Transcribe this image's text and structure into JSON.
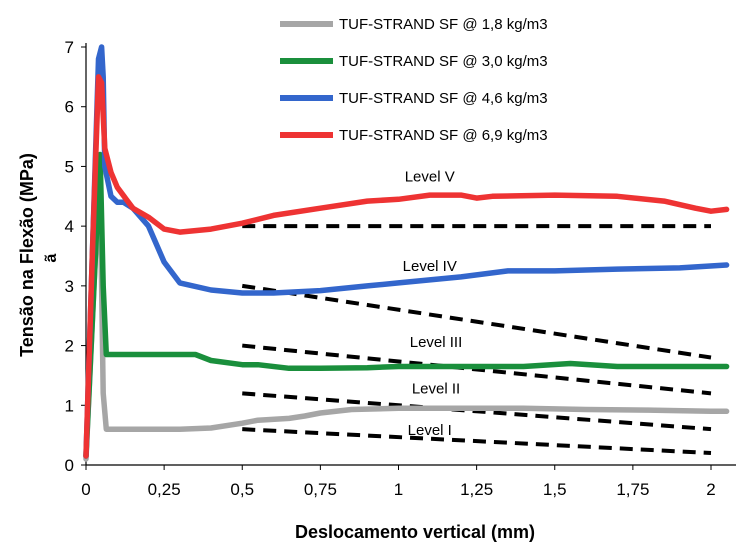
{
  "chart_data": {
    "type": "line",
    "title": "",
    "xlabel": "Deslocamento vertical (mm)",
    "ylabel": "Tensão na Flexão (MPa)",
    "ylabel_stray": "ã",
    "xlim": [
      0,
      2.08
    ],
    "ylim": [
      0,
      7
    ],
    "xticks": [
      0,
      0.25,
      0.5,
      0.75,
      1,
      1.25,
      1.5,
      1.75,
      2
    ],
    "xtick_labels": [
      "0",
      "0,25",
      "0,5",
      "0,75",
      "1",
      "1,25",
      "1,5",
      "1,75",
      "2"
    ],
    "yticks": [
      0,
      1,
      2,
      3,
      4,
      5,
      6,
      7
    ],
    "ytick_labels": [
      "0",
      "1",
      "2",
      "3",
      "4",
      "5",
      "6",
      "7"
    ],
    "grid": false,
    "legend_position": "top-center",
    "series": [
      {
        "name": "TUF-STRAND SF @ 1,8 kg/m3",
        "color": "#a6a6a6",
        "x": [
          0,
          0.03,
          0.045,
          0.05,
          0.055,
          0.065,
          0.1,
          0.2,
          0.3,
          0.4,
          0.5,
          0.55,
          0.65,
          0.7,
          0.75,
          0.85,
          1.0,
          1.2,
          1.4,
          1.6,
          1.8,
          2.0,
          2.05
        ],
        "y": [
          0.1,
          3.5,
          4.6,
          3.0,
          1.2,
          0.6,
          0.6,
          0.6,
          0.6,
          0.62,
          0.7,
          0.75,
          0.78,
          0.82,
          0.87,
          0.93,
          0.95,
          0.95,
          0.95,
          0.93,
          0.92,
          0.9,
          0.9
        ]
      },
      {
        "name": "TUF-STRAND SF @ 3,0 kg/m3",
        "color": "#1a8f3c",
        "x": [
          0,
          0.03,
          0.045,
          0.055,
          0.065,
          0.1,
          0.2,
          0.35,
          0.4,
          0.5,
          0.55,
          0.65,
          0.75,
          0.9,
          1.0,
          1.2,
          1.4,
          1.55,
          1.7,
          1.9,
          2.05
        ],
        "y": [
          0.15,
          3.5,
          5.2,
          3.0,
          1.85,
          1.85,
          1.85,
          1.85,
          1.75,
          1.68,
          1.68,
          1.62,
          1.62,
          1.63,
          1.65,
          1.65,
          1.65,
          1.7,
          1.65,
          1.65,
          1.65
        ]
      },
      {
        "name": "TUF-STRAND SF @ 4,6 kg/m3",
        "color": "#3366cc",
        "x": [
          0,
          0.02,
          0.04,
          0.05,
          0.055,
          0.06,
          0.08,
          0.1,
          0.12,
          0.15,
          0.2,
          0.25,
          0.3,
          0.4,
          0.5,
          0.6,
          0.75,
          0.9,
          1.0,
          1.2,
          1.35,
          1.5,
          1.7,
          1.9,
          2.05
        ],
        "y": [
          0.15,
          3.5,
          6.8,
          7.0,
          6.5,
          5.0,
          4.5,
          4.4,
          4.4,
          4.3,
          4.0,
          3.4,
          3.05,
          2.93,
          2.88,
          2.88,
          2.92,
          3.0,
          3.05,
          3.15,
          3.25,
          3.25,
          3.28,
          3.3,
          3.35
        ]
      },
      {
        "name": "TUF-STRAND SF @ 6,9 kg/m3",
        "color": "#ee3333",
        "x": [
          0,
          0.02,
          0.04,
          0.05,
          0.06,
          0.08,
          0.1,
          0.15,
          0.2,
          0.25,
          0.3,
          0.4,
          0.5,
          0.6,
          0.75,
          0.9,
          1.0,
          1.1,
          1.2,
          1.25,
          1.3,
          1.5,
          1.7,
          1.85,
          1.95,
          2.0,
          2.05
        ],
        "y": [
          0.15,
          3.5,
          6.5,
          6.4,
          5.3,
          4.9,
          4.65,
          4.3,
          4.15,
          3.95,
          3.9,
          3.95,
          4.05,
          4.18,
          4.3,
          4.42,
          4.45,
          4.52,
          4.52,
          4.47,
          4.5,
          4.52,
          4.5,
          4.42,
          4.3,
          4.25,
          4.28
        ]
      }
    ],
    "reference_lines": [
      {
        "label": "Level V",
        "x": [
          0.5,
          2.0
        ],
        "y": [
          4.0,
          4.0
        ]
      },
      {
        "label": "Level IV",
        "x": [
          0.5,
          2.0
        ],
        "y": [
          3.0,
          1.8
        ]
      },
      {
        "label": "Level III",
        "x": [
          0.5,
          2.0
        ],
        "y": [
          2.0,
          1.2
        ]
      },
      {
        "label": "Level II",
        "x": [
          0.5,
          2.0
        ],
        "y": [
          1.2,
          0.6
        ]
      },
      {
        "label": "Level I",
        "x": [
          0.5,
          2.0
        ],
        "y": [
          0.6,
          0.2
        ]
      }
    ],
    "reference_label_positions": [
      {
        "label": "Level V",
        "x": 1.1,
        "y": 4.75
      },
      {
        "label": "Level IV",
        "x": 1.1,
        "y": 3.25
      },
      {
        "label": "Level III",
        "x": 1.12,
        "y": 1.98
      },
      {
        "label": "Level II",
        "x": 1.12,
        "y": 1.2
      },
      {
        "label": "Level I",
        "x": 1.1,
        "y": 0.5
      }
    ]
  }
}
